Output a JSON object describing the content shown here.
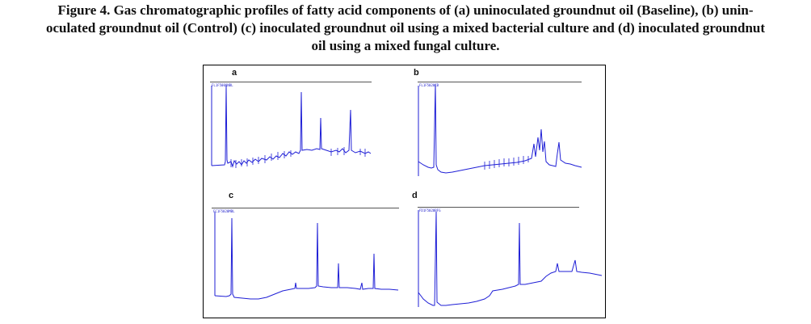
{
  "caption": {
    "line1": "Figure 4. Gas chromatographic profiles of fatty acid components of (a) uninoculated groundnut oil (Baseline), (b) unin-",
    "line2": "oculated groundnut oil (Control) (c) inoculated groundnut oil using a mixed bacterial culture and (d) inoculated groundnut",
    "line3": "oil using a mixed fungal culture."
  },
  "panels": [
    {
      "label": "a",
      "id_text": "FL1F5000NBL"
    },
    {
      "label": "b",
      "id_text": "FL1F5020CB"
    },
    {
      "label": "c",
      "id_text": "FC1F5020MBL"
    },
    {
      "label": "d",
      "id_text": "FD1F5020BFG"
    }
  ],
  "colors": {
    "trace": "#1f1fd6",
    "frame": "#000000"
  }
}
